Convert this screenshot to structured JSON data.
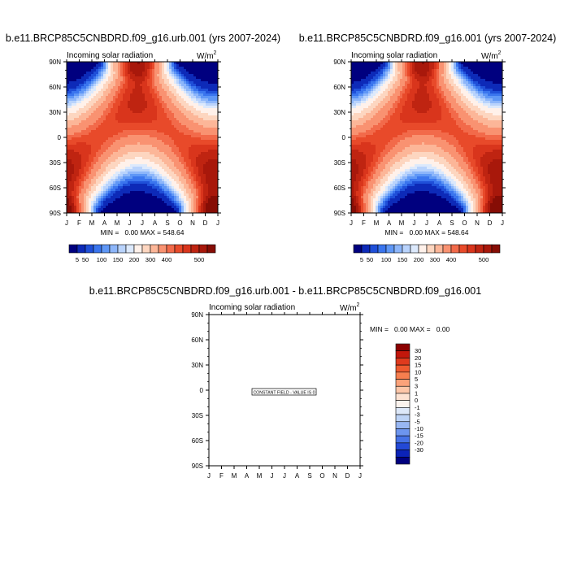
{
  "chart_data": [
    {
      "type": "heatmap",
      "title": "b.e11.BRCP85C5CNBDRD.f09_g16.urb.001 (yrs 2007-2024)",
      "subtitle_left": "Incoming solar radiation",
      "units": "W/m",
      "units_exponent": "2",
      "x_ticks": [
        "J",
        "F",
        "M",
        "A",
        "M",
        "J",
        "J",
        "A",
        "S",
        "O",
        "N",
        "D",
        "J"
      ],
      "y_ticks": [
        "90N",
        "60N",
        "30N",
        "0",
        "30S",
        "60S",
        "90S"
      ],
      "ylim": [
        -90,
        90
      ],
      "min_max_text": "MIN =   0.00 MAX = 548.64",
      "z_min": 0.0,
      "z_max": 548.64,
      "colorbar": {
        "orientation": "horizontal",
        "labels": [
          "5",
          "50",
          "100",
          "150",
          "200",
          "300",
          "400",
          "500"
        ],
        "colors": [
          "#00007f",
          "#0d2ab8",
          "#1f4fd8",
          "#3a75ee",
          "#5f97f6",
          "#8db6fa",
          "#b9d3fc",
          "#dce9fc",
          "#fff1ea",
          "#fdd6c0",
          "#fcb698",
          "#f99271",
          "#f26a4a",
          "#e84a2a",
          "#d9351c",
          "#bf2411",
          "#a8180b",
          "#860d05"
        ]
      }
    },
    {
      "type": "heatmap",
      "title": "b.e11.BRCP85C5CNBDRD.f09_g16.001 (yrs 2007-2024)",
      "subtitle_left": "Incoming solar radiation",
      "units": "W/m",
      "units_exponent": "2",
      "x_ticks": [
        "J",
        "F",
        "M",
        "A",
        "M",
        "J",
        "J",
        "A",
        "S",
        "O",
        "N",
        "D",
        "J"
      ],
      "y_ticks": [
        "90N",
        "60N",
        "30N",
        "0",
        "30S",
        "60S",
        "90S"
      ],
      "ylim": [
        -90,
        90
      ],
      "min_max_text": "MIN =   0.00 MAX = 548.64",
      "z_min": 0.0,
      "z_max": 548.64,
      "colorbar": {
        "orientation": "horizontal",
        "labels": [
          "5",
          "50",
          "100",
          "150",
          "200",
          "300",
          "400",
          "500"
        ],
        "colors": [
          "#00007f",
          "#0d2ab8",
          "#1f4fd8",
          "#3a75ee",
          "#5f97f6",
          "#8db6fa",
          "#b9d3fc",
          "#dce9fc",
          "#fff1ea",
          "#fdd6c0",
          "#fcb698",
          "#f99271",
          "#f26a4a",
          "#e84a2a",
          "#d9351c",
          "#bf2411",
          "#a8180b",
          "#860d05"
        ]
      }
    },
    {
      "type": "heatmap",
      "title": "b.e11.BRCP85C5CNBDRD.f09_g16.urb.001 - b.e11.BRCP85C5CNBDRD.f09_g16.001",
      "subtitle_left": "Incoming solar radiation",
      "units": "W/m",
      "units_exponent": "2",
      "x_ticks": [
        "J",
        "F",
        "M",
        "A",
        "M",
        "J",
        "J",
        "A",
        "S",
        "O",
        "N",
        "D",
        "J"
      ],
      "y_ticks": [
        "90N",
        "60N",
        "30N",
        "0",
        "30S",
        "60S",
        "90S"
      ],
      "ylim": [
        -90,
        90
      ],
      "min_max_text": "MIN =   0.00 MAX =   0.00",
      "z_min": 0.0,
      "z_max": 0.0,
      "annotation": "CONSTANT FIELD - VALUE IS 0",
      "colorbar": {
        "orientation": "vertical",
        "labels": [
          "30",
          "20",
          "15",
          "10",
          "5",
          "3",
          "1",
          "0",
          "-1",
          "-3",
          "-5",
          "-10",
          "-15",
          "-20",
          "-30"
        ],
        "colors": [
          "#8b0000",
          "#c2170b",
          "#df3a1d",
          "#ee5a2f",
          "#f77f4f",
          "#fba27a",
          "#fdc6a8",
          "#fde2d2",
          "#fbf3ee",
          "#dde8f9",
          "#bdd3f6",
          "#98b7f3",
          "#6d95ee",
          "#4672e6",
          "#2349d6",
          "#0b23b8",
          "#00007f"
        ]
      }
    }
  ]
}
